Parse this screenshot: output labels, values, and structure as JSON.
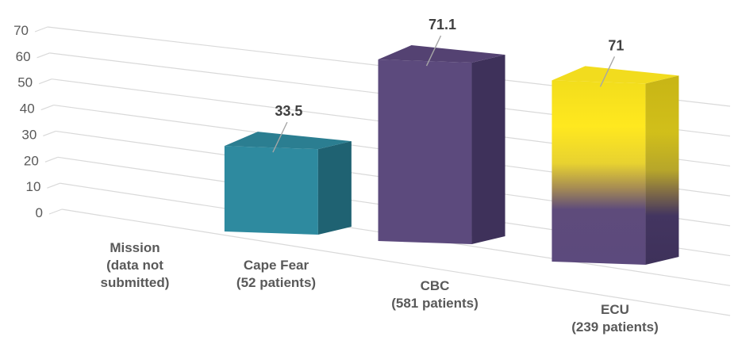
{
  "chart_data": {
    "type": "bar",
    "categories": [
      [
        "Mission",
        "(data not",
        "submitted)"
      ],
      [
        "Cape Fear",
        "(52 patients)"
      ],
      [
        "CBC",
        "(581 patients)"
      ],
      [
        "ECU",
        "(239 patients)"
      ]
    ],
    "values": [
      null,
      33.5,
      71.1,
      71
    ],
    "data_labels": [
      "",
      "33.5",
      "71.1",
      "71"
    ],
    "yticks": [
      "0",
      "10",
      "20",
      "30",
      "40",
      "50",
      "60",
      "70"
    ],
    "ylim": [
      0,
      70
    ],
    "grid": true,
    "three_d": true,
    "colors": {
      "cape_fear": "#2E8A9F",
      "cbc": "#5C4A7D",
      "ecu_top": "#F4E12A",
      "ecu_bottom": "#5C4A7D",
      "grid": "#D9D9D9"
    }
  }
}
